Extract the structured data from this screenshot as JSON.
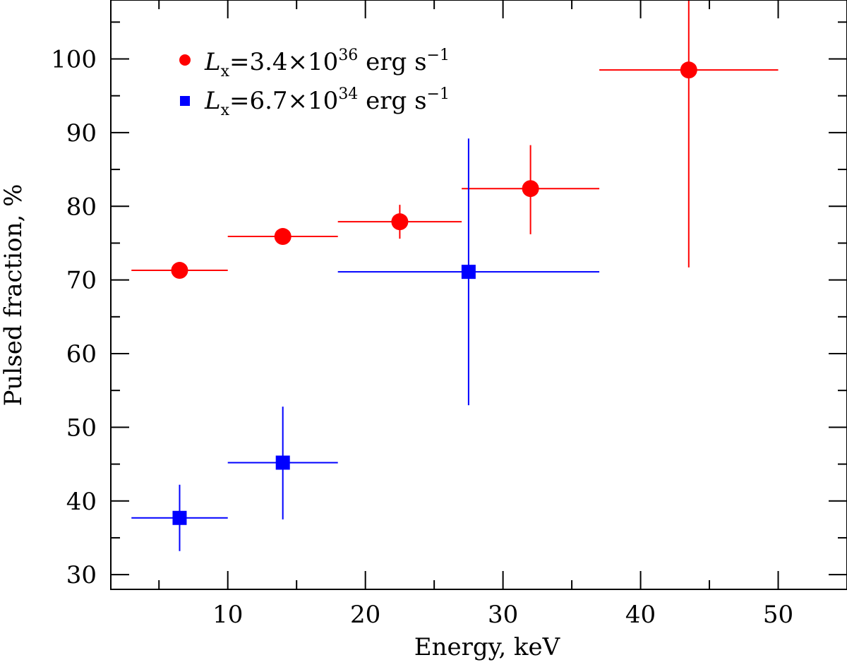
{
  "chart_data": {
    "type": "scatter",
    "title": "",
    "xlabel": "Energy, keV",
    "ylabel": "Pulsed fraction, %",
    "xlim": [
      1.5,
      55
    ],
    "ylim": [
      28,
      108
    ],
    "x_ticks_major": [
      10,
      20,
      30,
      40,
      50
    ],
    "x_ticks_minor": [
      5,
      15,
      25,
      35,
      45,
      55
    ],
    "y_ticks_major": [
      30,
      40,
      50,
      60,
      70,
      80,
      90,
      100
    ],
    "y_ticks_minor": [
      35,
      45,
      55,
      65,
      75,
      85,
      95,
      105
    ],
    "legend_position": "top-left",
    "series": [
      {
        "name": "Lx=3.4×10^36 erg s^-1",
        "legend": {
          "symbol": "L",
          "subscript": "x",
          "value": "=3.4×10",
          "exponent": "36",
          "unit": " erg s",
          "unit_exponent": "−1"
        },
        "color": "#ff0000",
        "marker": "circle",
        "points": [
          {
            "x": 6.5,
            "xlo": 3,
            "xhi": 10,
            "y": 71.3,
            "ylo": 70.9,
            "yhi": 71.7
          },
          {
            "x": 14,
            "xlo": 10,
            "xhi": 18,
            "y": 75.9,
            "ylo": 74.8,
            "yhi": 77.0
          },
          {
            "x": 22.5,
            "xlo": 18,
            "xhi": 27,
            "y": 77.9,
            "ylo": 75.6,
            "yhi": 80.2
          },
          {
            "x": 32,
            "xlo": 27,
            "xhi": 37,
            "y": 82.4,
            "ylo": 76.2,
            "yhi": 88.3
          },
          {
            "x": 43.5,
            "xlo": 37,
            "xhi": 50,
            "y": 98.5,
            "ylo": 71.7,
            "yhi": 108
          }
        ]
      },
      {
        "name": "Lx=6.7×10^34 erg s^-1",
        "legend": {
          "symbol": "L",
          "subscript": "x",
          "value": "=6.7×10",
          "exponent": "34",
          "unit": " erg s",
          "unit_exponent": "−1"
        },
        "color": "#0000ff",
        "marker": "square",
        "points": [
          {
            "x": 6.5,
            "xlo": 3,
            "xhi": 10,
            "y": 37.7,
            "ylo": 33.2,
            "yhi": 42.2
          },
          {
            "x": 14,
            "xlo": 10,
            "xhi": 18,
            "y": 45.2,
            "ylo": 37.5,
            "yhi": 52.8
          },
          {
            "x": 27.5,
            "xlo": 18,
            "xhi": 37,
            "y": 71.1,
            "ylo": 53.0,
            "yhi": 89.2
          }
        ]
      }
    ]
  }
}
